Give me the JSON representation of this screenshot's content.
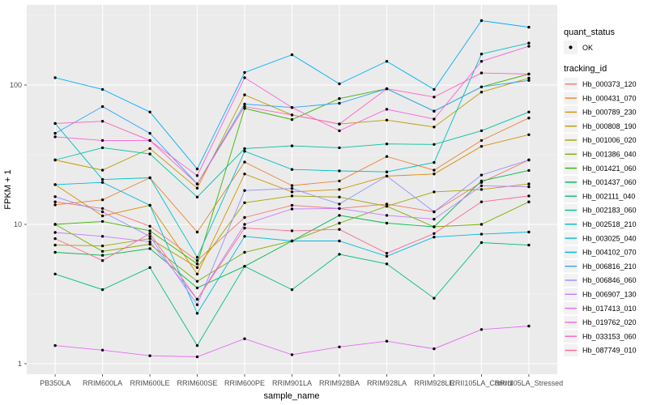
{
  "chart_data": {
    "type": "line",
    "title": "",
    "xlabel": "sample_name",
    "ylabel": "FPKM + 1",
    "y_scale": "log10",
    "ylim": [
      0.84,
      380
    ],
    "y_ticks": [
      1,
      10,
      100
    ],
    "y_minor_ticks": [
      3.162,
      31.62,
      316.2
    ],
    "grid": true,
    "legend_position": "right",
    "point_shape": "filled-circle",
    "point_color": "#000000",
    "categories": [
      "PB350LA",
      "RRIM600LA",
      "RRIM600LE",
      "RRIM600SE",
      "RRIM600PE",
      "RRIM901LA",
      "RRIM928BA",
      "RRIM928LA",
      "RRIM928LE",
      "RRII105LA_Control",
      "RRII105LA_Stressed"
    ],
    "series": [
      {
        "id": "Hb_000373_120",
        "color": "#F8766D",
        "values": [
          14.5,
          13,
          9.7,
          5.5,
          11.2,
          13.7,
          13,
          14,
          12.3,
          20,
          29
        ]
      },
      {
        "id": "Hb_000431_070",
        "color": "#EA8331",
        "values": [
          13.8,
          15,
          21.6,
          8.8,
          28,
          19,
          20.5,
          30.7,
          24.5,
          40,
          58
        ]
      },
      {
        "id": "Hb_000789_230",
        "color": "#D89000",
        "values": [
          19.3,
          11.5,
          13.7,
          4.4,
          23,
          17.1,
          17.8,
          22.2,
          23,
          36.3,
          44
        ]
      },
      {
        "id": "Hb_000808_190",
        "color": "#C09B00",
        "values": [
          29,
          24.5,
          35,
          18.2,
          85,
          61,
          52.5,
          56,
          50,
          89,
          112
        ]
      },
      {
        "id": "Hb_001006_020",
        "color": "#A3A500",
        "values": [
          7.1,
          7,
          7.9,
          4.9,
          14.3,
          16,
          15.7,
          13.5,
          17.1,
          17.8,
          19.5
        ]
      },
      {
        "id": "Hb_001386_040",
        "color": "#7CAE00",
        "values": [
          10,
          6.4,
          7.2,
          3.9,
          6.3,
          7.6,
          10.2,
          13.5,
          9.6,
          10,
          14.5
        ]
      },
      {
        "id": "Hb_001421_060",
        "color": "#39B600",
        "values": [
          10,
          10.5,
          9,
          5.2,
          68,
          56.5,
          80,
          94,
          65,
          97,
          120
        ]
      },
      {
        "id": "Hb_001437_060",
        "color": "#00BB4E",
        "values": [
          6.3,
          6,
          6.7,
          3.5,
          5,
          7.6,
          11.6,
          10.2,
          9.6,
          20.5,
          24.4
        ]
      },
      {
        "id": "Hb_002111_040",
        "color": "#00BF7D",
        "values": [
          4.4,
          3.4,
          4.9,
          1.35,
          5,
          3.4,
          6.1,
          5.2,
          2.95,
          7.4,
          7.1
        ]
      },
      {
        "id": "Hb_002183_060",
        "color": "#00C1A3",
        "values": [
          29,
          35.5,
          32,
          15.7,
          35,
          36.6,
          35.5,
          37.8,
          37.5,
          47,
          64
        ]
      },
      {
        "id": "Hb_002518_210",
        "color": "#00BFC4",
        "values": [
          53,
          21,
          21.6,
          5.8,
          33.5,
          24.8,
          24.2,
          23.8,
          27.8,
          167,
          200
        ]
      },
      {
        "id": "Hb_003025_040",
        "color": "#00BAE0",
        "values": [
          19.3,
          20,
          13.7,
          2.3,
          8.2,
          7.6,
          7.6,
          5.9,
          8.1,
          8.5,
          8.8
        ]
      },
      {
        "id": "Hb_004102_070",
        "color": "#00B0F6",
        "values": [
          113,
          93,
          64,
          25,
          123,
          165,
          102,
          148,
          93,
          290,
          260
        ]
      },
      {
        "id": "Hb_006816_210",
        "color": "#35A2FF",
        "values": [
          45,
          70,
          45,
          19.5,
          73,
          69,
          74,
          94,
          65,
          97,
          108
        ]
      },
      {
        "id": "Hb_006846_060",
        "color": "#9590FF",
        "values": [
          15.8,
          12.3,
          8.2,
          2.65,
          17.5,
          18.1,
          14,
          22.2,
          12.3,
          22.6,
          29
        ]
      },
      {
        "id": "Hb_006907_130",
        "color": "#C77CFF",
        "values": [
          8.75,
          8.2,
          7.5,
          2.9,
          10,
          12.9,
          13,
          11.6,
          10.9,
          18.9,
          18.6
        ]
      },
      {
        "id": "Hb_017413_010",
        "color": "#E76BF3",
        "values": [
          1.35,
          1.25,
          1.14,
          1.12,
          1.51,
          1.16,
          1.32,
          1.45,
          1.28,
          1.76,
          1.86
        ]
      },
      {
        "id": "Hb_019762_020",
        "color": "#FA62DB",
        "values": [
          42.5,
          40,
          40,
          22.4,
          113,
          69,
          47,
          67,
          57,
          148,
          190
        ]
      },
      {
        "id": "Hb_033153_060",
        "color": "#FF62BC",
        "values": [
          53,
          55,
          40,
          19.5,
          70,
          61,
          52.5,
          94,
          82,
          122,
          120
        ]
      },
      {
        "id": "Hb_087749_010",
        "color": "#FF6C90",
        "values": [
          7.9,
          5.5,
          8.6,
          2.9,
          9.4,
          9,
          9.2,
          6.2,
          8.6,
          14.5,
          16
        ]
      }
    ],
    "legend": {
      "quant_status_title": "quant_status",
      "quant_status_items": [
        "OK"
      ],
      "tracking_title": "tracking_id"
    }
  },
  "theme": {
    "panel_bg": "#EBEBEB",
    "grid_major": "#FFFFFF",
    "grid_minor": "#F5F5F5",
    "axis_text": "#4D4D4D",
    "tick_mark": "#333333",
    "legend_key_bg": "#F2F2F2",
    "page_bg": "#FFFFFF"
  }
}
